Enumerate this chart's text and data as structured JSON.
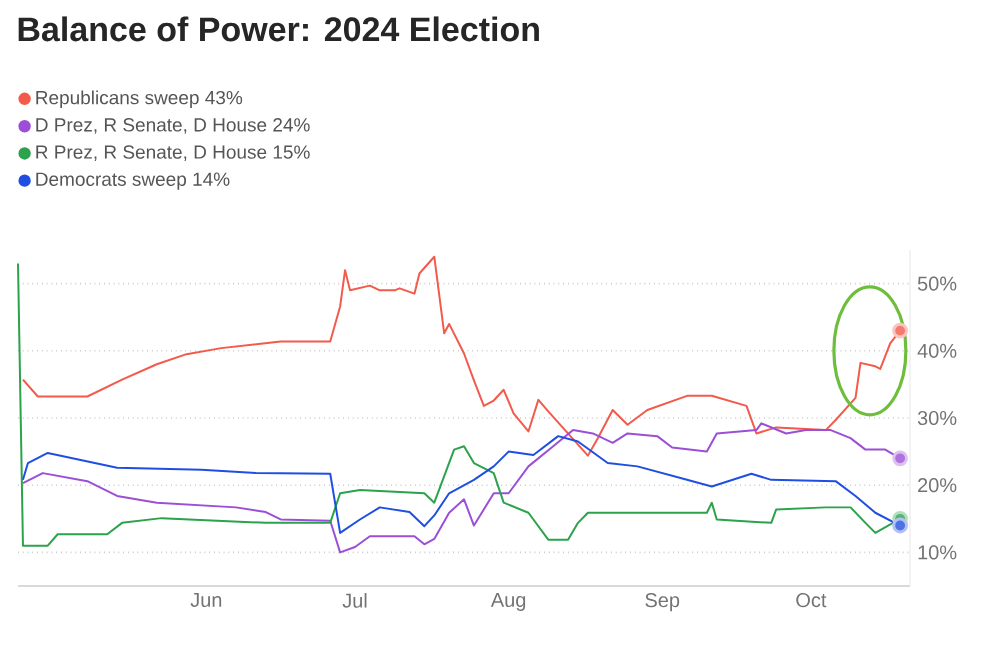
{
  "chart_data": {
    "type": "line",
    "title": "Balance of Power: 2024 Election",
    "xlim": [
      "2024-04-24",
      "2024-10-21"
    ],
    "xticks": [
      {
        "value": "2024-06-01",
        "label": "Jun"
      },
      {
        "value": "2024-07-01",
        "label": "Jul"
      },
      {
        "value": "2024-08-01",
        "label": "Aug"
      },
      {
        "value": "2024-09-01",
        "label": "Sep"
      },
      {
        "value": "2024-10-01",
        "label": "Oct"
      }
    ],
    "ylim": [
      5,
      55
    ],
    "yticks": [
      {
        "value": 10,
        "label": "10%"
      },
      {
        "value": 20,
        "label": "20%"
      },
      {
        "value": 30,
        "label": "30%"
      },
      {
        "value": 40,
        "label": "40%"
      },
      {
        "value": 50,
        "label": "50%"
      }
    ],
    "grid": "y",
    "legend": "top left",
    "series": [
      {
        "name": "Republicans sweep 43%",
        "color": "#f25a4c",
        "x": [
          "2024-04-25",
          "2024-04-28",
          "2024-05-08",
          "2024-05-15",
          "2024-05-22",
          "2024-05-28",
          "2024-06-04",
          "2024-06-16",
          "2024-06-26",
          "2024-06-28",
          "2024-06-29",
          "2024-06-30",
          "2024-07-04",
          "2024-07-06",
          "2024-07-09",
          "2024-07-10",
          "2024-07-13",
          "2024-07-14",
          "2024-07-17",
          "2024-07-19",
          "2024-07-20",
          "2024-07-23",
          "2024-07-25",
          "2024-07-27",
          "2024-07-29",
          "2024-07-31",
          "2024-08-02",
          "2024-08-05",
          "2024-08-07",
          "2024-08-09",
          "2024-08-17",
          "2024-08-19",
          "2024-08-22",
          "2024-08-25",
          "2024-08-29",
          "2024-09-06",
          "2024-09-11",
          "2024-09-18",
          "2024-09-20",
          "2024-09-24",
          "2024-10-04",
          "2024-10-06",
          "2024-10-10",
          "2024-10-11",
          "2024-10-14",
          "2024-10-15",
          "2024-10-17",
          "2024-10-19"
        ],
        "values": [
          35.7,
          33.2,
          33.2,
          35.7,
          38,
          39.5,
          40.4,
          41.4,
          41.4,
          46.6,
          52,
          49,
          49.7,
          49,
          49,
          49.3,
          48.5,
          51.5,
          54,
          42.6,
          44,
          39.6,
          35.6,
          31.8,
          32.6,
          34.2,
          30.7,
          28,
          32.7,
          31,
          24.4,
          27,
          31.2,
          29,
          31.2,
          33.3,
          33.3,
          31.8,
          27.7,
          28.6,
          28.2,
          29.7,
          33,
          38.2,
          37.7,
          37.3,
          41.1,
          43
        ]
      },
      {
        "name": "D Prez, R Senate, D House 24%",
        "color": "#9b4fd6",
        "x": [
          "2024-04-25",
          "2024-04-29",
          "2024-05-08",
          "2024-05-14",
          "2024-05-22",
          "2024-06-07",
          "2024-06-13",
          "2024-06-16",
          "2024-06-26",
          "2024-06-28",
          "2024-07-01",
          "2024-07-04",
          "2024-07-13",
          "2024-07-15",
          "2024-07-17",
          "2024-07-20",
          "2024-07-23",
          "2024-07-25",
          "2024-07-29",
          "2024-08-01",
          "2024-08-05",
          "2024-08-10",
          "2024-08-14",
          "2024-08-18",
          "2024-08-22",
          "2024-08-25",
          "2024-08-31",
          "2024-09-03",
          "2024-09-10",
          "2024-09-12",
          "2024-09-20",
          "2024-09-21",
          "2024-09-26",
          "2024-09-30",
          "2024-10-05",
          "2024-10-09",
          "2024-10-12",
          "2024-10-16",
          "2024-10-19"
        ],
        "values": [
          20.3,
          21.8,
          20.6,
          18.4,
          17.4,
          16.7,
          16,
          14.9,
          14.7,
          10,
          10.8,
          12.4,
          12.4,
          11.2,
          12,
          15.9,
          17.9,
          14,
          18.8,
          18.8,
          22.8,
          25.8,
          28.2,
          27.7,
          26.3,
          27.7,
          27.3,
          25.6,
          25,
          27.7,
          28.2,
          29.2,
          27.7,
          28.2,
          28.2,
          27,
          25.3,
          25.3,
          24
        ]
      },
      {
        "name": "R Prez, R Senate, D House 15%",
        "color": "#2ca24c",
        "x": [
          "2024-04-24",
          "2024-04-25",
          "2024-04-30",
          "2024-05-02",
          "2024-05-12",
          "2024-05-15",
          "2024-05-23",
          "2024-06-13",
          "2024-06-26",
          "2024-06-28",
          "2024-07-02",
          "2024-07-15",
          "2024-07-17",
          "2024-07-21",
          "2024-07-23",
          "2024-07-25",
          "2024-07-29",
          "2024-07-31",
          "2024-08-05",
          "2024-08-09",
          "2024-08-13",
          "2024-08-15",
          "2024-08-17",
          "2024-09-10",
          "2024-09-11",
          "2024-09-12",
          "2024-09-23",
          "2024-09-24",
          "2024-10-04",
          "2024-10-09",
          "2024-10-12",
          "2024-10-14",
          "2024-10-19"
        ],
        "values": [
          53,
          11,
          11,
          12.7,
          12.7,
          14.4,
          15.1,
          14.4,
          14.4,
          18.8,
          19.3,
          18.8,
          17.4,
          25.3,
          25.8,
          23.3,
          21.8,
          17.4,
          15.9,
          11.9,
          11.9,
          14.4,
          15.9,
          15.9,
          17.4,
          14.9,
          14.4,
          16.4,
          16.7,
          16.7,
          14.4,
          12.9,
          15
        ]
      },
      {
        "name": "Democrats sweep 14%",
        "color": "#1f4fe0",
        "x": [
          "2024-04-25",
          "2024-04-26",
          "2024-04-30",
          "2024-05-14",
          "2024-05-31",
          "2024-06-11",
          "2024-06-26",
          "2024-06-28",
          "2024-07-02",
          "2024-07-06",
          "2024-07-12",
          "2024-07-15",
          "2024-07-17",
          "2024-07-20",
          "2024-07-25",
          "2024-07-29",
          "2024-08-01",
          "2024-08-06",
          "2024-08-11",
          "2024-08-15",
          "2024-08-21",
          "2024-08-27",
          "2024-09-06",
          "2024-09-11",
          "2024-09-19",
          "2024-09-23",
          "2024-10-06",
          "2024-10-10",
          "2024-10-14",
          "2024-10-19"
        ],
        "values": [
          20.8,
          23.3,
          24.8,
          22.6,
          22.3,
          21.8,
          21.7,
          12.9,
          14.9,
          16.7,
          16,
          13.9,
          15.5,
          18.8,
          20.8,
          22.8,
          25,
          24.5,
          27.3,
          26.5,
          23.3,
          22.8,
          20.8,
          19.8,
          21.7,
          20.8,
          20.6,
          18.4,
          15.9,
          14
        ]
      }
    ]
  }
}
